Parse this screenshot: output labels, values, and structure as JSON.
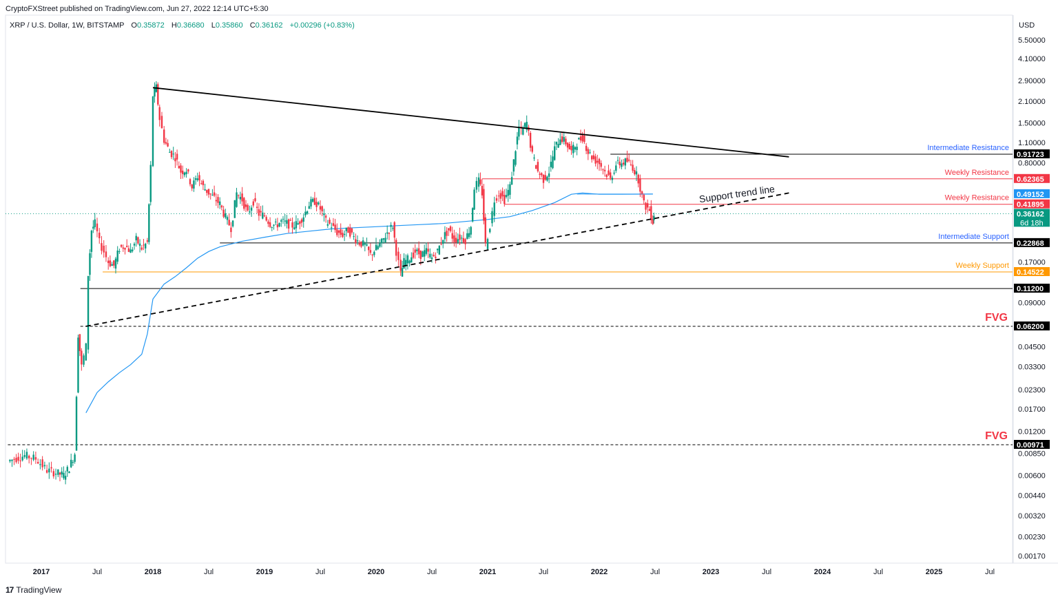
{
  "header": {
    "published": "CryptoFXStreet published on TradingView.com, Jun 27, 2022 12:14 UTC+5:30"
  },
  "symbol": {
    "name": "XRP / U.S. Dollar, 1W, BITSTAMP",
    "o_label": "O",
    "o_value": "0.35872",
    "h_label": "H",
    "h_value": "0.36680",
    "l_label": "L",
    "l_value": "0.35860",
    "c_label": "C",
    "c_value": "0.36162",
    "change": "+0.00296 (+0.83%)"
  },
  "footer": {
    "brand": "TradingView",
    "logo": "17"
  },
  "colors": {
    "up": "#089981",
    "down": "#f23645",
    "ma": "#2196f3",
    "resistance": "#f23645",
    "intermediate": "#2962ff",
    "support_orange": "#ff9800",
    "black": "#000000"
  },
  "chart_data": {
    "type": "candlestick",
    "y_scale": "log",
    "y_axis_unit": "USD",
    "y_ticks": [
      "5.50000",
      "4.10000",
      "2.90000",
      "2.10000",
      "1.50000",
      "1.10000",
      "0.80000",
      "0.17000",
      "0.09000",
      "0.04500",
      "0.03300",
      "0.02300",
      "0.01700",
      "0.01200",
      "0.00850",
      "0.00600",
      "0.00440",
      "0.00320",
      "0.00230",
      "0.00170"
    ],
    "y_tick_values": [
      5.5,
      4.1,
      2.9,
      2.1,
      1.5,
      1.1,
      0.8,
      0.17,
      0.09,
      0.045,
      0.033,
      0.023,
      0.017,
      0.012,
      0.0085,
      0.006,
      0.0044,
      0.0032,
      0.0023,
      0.0017
    ],
    "x_ticks": [
      {
        "label": "2017",
        "t": 2017.0,
        "bold": true
      },
      {
        "label": "Jul",
        "t": 2017.5
      },
      {
        "label": "2018",
        "t": 2018.0,
        "bold": true
      },
      {
        "label": "Jul",
        "t": 2018.5
      },
      {
        "label": "2019",
        "t": 2019.0,
        "bold": true
      },
      {
        "label": "Jul",
        "t": 2019.5
      },
      {
        "label": "2020",
        "t": 2020.0,
        "bold": true
      },
      {
        "label": "Jul",
        "t": 2020.5
      },
      {
        "label": "2021",
        "t": 2021.0,
        "bold": true
      },
      {
        "label": "Jul",
        "t": 2021.5
      },
      {
        "label": "2022",
        "t": 2022.0,
        "bold": true
      },
      {
        "label": "Jul",
        "t": 2022.5
      },
      {
        "label": "2023",
        "t": 2023.0,
        "bold": true
      },
      {
        "label": "Jul",
        "t": 2023.5
      },
      {
        "label": "2024",
        "t": 2024.0,
        "bold": true
      },
      {
        "label": "Jul",
        "t": 2024.5
      },
      {
        "label": "2025",
        "t": 2025.0,
        "bold": true
      },
      {
        "label": "Jul",
        "t": 2025.5
      }
    ],
    "price_path": [
      [
        2016.7,
        0.0075
      ],
      [
        2016.85,
        0.0082
      ],
      [
        2016.95,
        0.0078
      ],
      [
        2017.05,
        0.0065
      ],
      [
        2017.15,
        0.0062
      ],
      [
        2017.2,
        0.006
      ],
      [
        2017.25,
        0.0068
      ],
      [
        2017.3,
        0.0085
      ],
      [
        2017.33,
        0.055
      ],
      [
        2017.36,
        0.033
      ],
      [
        2017.4,
        0.045
      ],
      [
        2017.42,
        0.14
      ],
      [
        2017.45,
        0.28
      ],
      [
        2017.48,
        0.31
      ],
      [
        2017.52,
        0.23
      ],
      [
        2017.56,
        0.2
      ],
      [
        2017.6,
        0.17
      ],
      [
        2017.65,
        0.16
      ],
      [
        2017.7,
        0.21
      ],
      [
        2017.75,
        0.22
      ],
      [
        2017.8,
        0.2
      ],
      [
        2017.85,
        0.24
      ],
      [
        2017.9,
        0.21
      ],
      [
        2017.95,
        0.23
      ],
      [
        2017.98,
        0.75
      ],
      [
        2018.0,
        2.3
      ],
      [
        2018.03,
        2.6
      ],
      [
        2018.06,
        1.6
      ],
      [
        2018.1,
        1.15
      ],
      [
        2018.15,
        0.95
      ],
      [
        2018.2,
        0.88
      ],
      [
        2018.25,
        0.7
      ],
      [
        2018.3,
        0.72
      ],
      [
        2018.35,
        0.55
      ],
      [
        2018.4,
        0.65
      ],
      [
        2018.45,
        0.55
      ],
      [
        2018.5,
        0.5
      ],
      [
        2018.55,
        0.46
      ],
      [
        2018.6,
        0.42
      ],
      [
        2018.65,
        0.34
      ],
      [
        2018.7,
        0.29
      ],
      [
        2018.75,
        0.5
      ],
      [
        2018.8,
        0.45
      ],
      [
        2018.85,
        0.36
      ],
      [
        2018.9,
        0.44
      ],
      [
        2018.95,
        0.36
      ],
      [
        2019.0,
        0.35
      ],
      [
        2019.05,
        0.31
      ],
      [
        2019.1,
        0.3
      ],
      [
        2019.15,
        0.32
      ],
      [
        2019.2,
        0.31
      ],
      [
        2019.25,
        0.3
      ],
      [
        2019.3,
        0.31
      ],
      [
        2019.35,
        0.35
      ],
      [
        2019.4,
        0.42
      ],
      [
        2019.45,
        0.44
      ],
      [
        2019.5,
        0.39
      ],
      [
        2019.55,
        0.32
      ],
      [
        2019.6,
        0.3
      ],
      [
        2019.65,
        0.27
      ],
      [
        2019.7,
        0.26
      ],
      [
        2019.75,
        0.28
      ],
      [
        2019.8,
        0.25
      ],
      [
        2019.85,
        0.23
      ],
      [
        2019.9,
        0.22
      ],
      [
        2019.95,
        0.19
      ],
      [
        2020.0,
        0.21
      ],
      [
        2020.05,
        0.23
      ],
      [
        2020.1,
        0.27
      ],
      [
        2020.15,
        0.3
      ],
      [
        2020.18,
        0.2
      ],
      [
        2020.22,
        0.14
      ],
      [
        2020.25,
        0.17
      ],
      [
        2020.3,
        0.18
      ],
      [
        2020.35,
        0.2
      ],
      [
        2020.4,
        0.19
      ],
      [
        2020.45,
        0.2
      ],
      [
        2020.5,
        0.18
      ],
      [
        2020.55,
        0.2
      ],
      [
        2020.6,
        0.25
      ],
      [
        2020.65,
        0.28
      ],
      [
        2020.7,
        0.24
      ],
      [
        2020.75,
        0.25
      ],
      [
        2020.8,
        0.24
      ],
      [
        2020.85,
        0.3
      ],
      [
        2020.88,
        0.55
      ],
      [
        2020.92,
        0.6
      ],
      [
        2020.95,
        0.5
      ],
      [
        2020.98,
        0.22
      ],
      [
        2021.02,
        0.3
      ],
      [
        2021.06,
        0.45
      ],
      [
        2021.1,
        0.5
      ],
      [
        2021.15,
        0.45
      ],
      [
        2021.2,
        0.55
      ],
      [
        2021.25,
        1.0
      ],
      [
        2021.28,
        1.4
      ],
      [
        2021.3,
        1.3
      ],
      [
        2021.35,
        1.5
      ],
      [
        2021.4,
        0.9
      ],
      [
        2021.45,
        0.7
      ],
      [
        2021.5,
        0.62
      ],
      [
        2021.55,
        0.7
      ],
      [
        2021.6,
        1.0
      ],
      [
        2021.65,
        1.2
      ],
      [
        2021.7,
        1.1
      ],
      [
        2021.75,
        0.95
      ],
      [
        2021.8,
        1.1
      ],
      [
        2021.85,
        1.2
      ],
      [
        2021.9,
        0.95
      ],
      [
        2021.95,
        0.85
      ],
      [
        2022.0,
        0.8
      ],
      [
        2022.05,
        0.7
      ],
      [
        2022.1,
        0.62
      ],
      [
        2022.15,
        0.78
      ],
      [
        2022.2,
        0.8
      ],
      [
        2022.25,
        0.82
      ],
      [
        2022.3,
        0.75
      ],
      [
        2022.35,
        0.62
      ],
      [
        2022.4,
        0.42
      ],
      [
        2022.45,
        0.38
      ],
      [
        2022.48,
        0.32
      ],
      [
        2022.49,
        0.36
      ]
    ],
    "ma_path": [
      [
        2017.4,
        0.016
      ],
      [
        2017.5,
        0.022
      ],
      [
        2017.6,
        0.026
      ],
      [
        2017.7,
        0.03
      ],
      [
        2017.8,
        0.034
      ],
      [
        2017.9,
        0.04
      ],
      [
        2017.95,
        0.055
      ],
      [
        2018.0,
        0.095
      ],
      [
        2018.1,
        0.12
      ],
      [
        2018.2,
        0.135
      ],
      [
        2018.3,
        0.155
      ],
      [
        2018.4,
        0.18
      ],
      [
        2018.5,
        0.2
      ],
      [
        2018.6,
        0.215
      ],
      [
        2018.7,
        0.225
      ],
      [
        2018.8,
        0.235
      ],
      [
        2019.0,
        0.25
      ],
      [
        2019.2,
        0.265
      ],
      [
        2019.4,
        0.275
      ],
      [
        2019.6,
        0.285
      ],
      [
        2019.8,
        0.29
      ],
      [
        2020.0,
        0.295
      ],
      [
        2020.2,
        0.3
      ],
      [
        2020.4,
        0.305
      ],
      [
        2020.6,
        0.31
      ],
      [
        2020.8,
        0.32
      ],
      [
        2021.0,
        0.33
      ],
      [
        2021.2,
        0.345
      ],
      [
        2021.4,
        0.38
      ],
      [
        2021.6,
        0.43
      ],
      [
        2021.75,
        0.49
      ],
      [
        2021.85,
        0.5
      ],
      [
        2022.0,
        0.49
      ],
      [
        2022.2,
        0.49
      ],
      [
        2022.48,
        0.4915
      ]
    ],
    "trendlines": [
      {
        "name": "descending-resistance",
        "from": [
          2018.0,
          2.6
        ],
        "to": [
          2023.7,
          0.88
        ],
        "style": "solid"
      },
      {
        "name": "support-trend",
        "from": [
          2017.4,
          0.062
        ],
        "to": [
          2023.7,
          0.5
        ],
        "style": "dashed"
      }
    ],
    "levels": [
      {
        "id": "intermediate-resistance",
        "value": 0.91723,
        "label": "0.91723",
        "text": "Intermediate Resistance",
        "color": "#000000",
        "text_color": "#2962ff",
        "from": 2022.1
      },
      {
        "id": "weekly-resistance-1",
        "value": 0.62365,
        "label": "0.62365",
        "text": "Weekly Resistance",
        "color": "#f23645",
        "text_color": "#f23645",
        "from": 2020.95
      },
      {
        "id": "ma-value",
        "value": 0.49152,
        "label": "0.49152",
        "text": "",
        "color": "#2196f3",
        "text_color": "#2196f3",
        "from": null
      },
      {
        "id": "weekly-resistance-2",
        "value": 0.41895,
        "label": "0.41895",
        "text": "Weekly Resistance",
        "color": "#f23645",
        "text_color": "#f23645",
        "from": 2021.15
      },
      {
        "id": "last-price",
        "value": 0.36162,
        "label": "0.36162",
        "sub": "6d 18h",
        "text": "",
        "color": "#089981",
        "text_color": "#089981",
        "from": 2016.7
      },
      {
        "id": "intermediate-support",
        "value": 0.22868,
        "label": "0.22868",
        "text": "Intermediate Support",
        "color": "#000000",
        "text_color": "#2962ff",
        "from": 2018.6
      },
      {
        "id": "weekly-support",
        "value": 0.14522,
        "label": "0.14522",
        "text": "Weekly Support",
        "color": "#ff9800",
        "text_color": "#ff9800",
        "from": 2017.55
      },
      {
        "id": "support-low",
        "value": 0.112,
        "label": "0.11200",
        "text": "",
        "color": "#000000",
        "text_color": "#000000",
        "from": 2017.35
      },
      {
        "id": "fvg-upper",
        "value": 0.062,
        "label": "0.06200",
        "text": "FVG",
        "color": "#000000",
        "text_color": "#f23645",
        "from": 2017.35,
        "dashed": true
      },
      {
        "id": "fvg-lower",
        "value": 0.00971,
        "label": "0.00971",
        "text": "FVG",
        "color": "#000000",
        "text_color": "#f23645",
        "from": 2016.7,
        "dashed": true
      }
    ],
    "annotation": {
      "text": "Support trend line",
      "at": [
        2022.9,
        0.43
      ],
      "angle": -8
    }
  }
}
